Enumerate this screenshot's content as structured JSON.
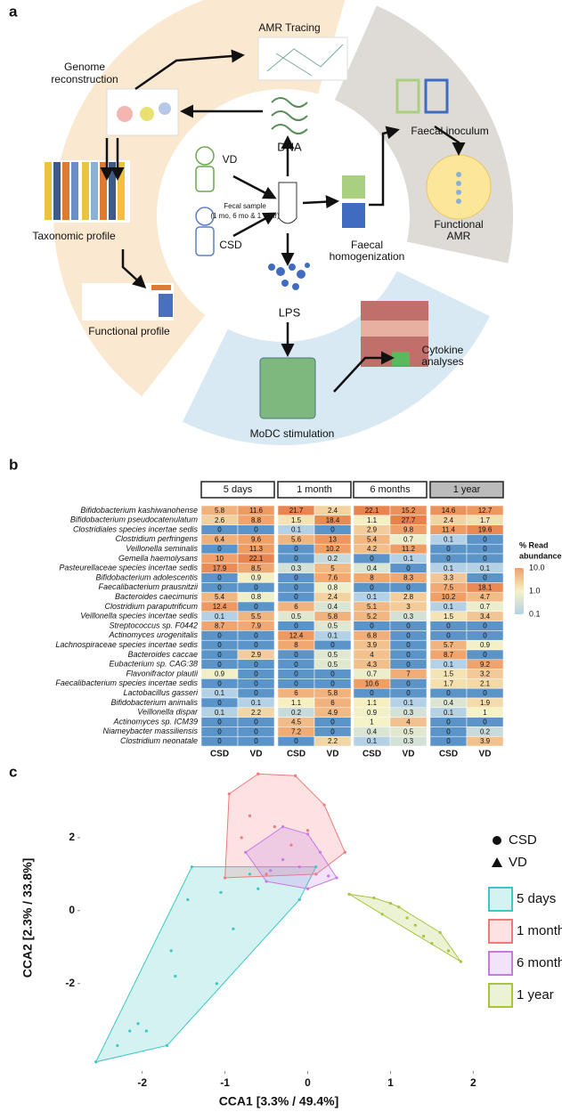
{
  "panel_a": {
    "label": "a",
    "amr_tracing": "AMR Tracing",
    "genome_reconstruction": [
      "Genome",
      "reconstruction"
    ],
    "dna": "DNA",
    "faecal_inoculum": "Faecal inoculum",
    "vd": "VD",
    "fecal_sample": [
      "Fecal sample",
      "(1 mo, 6 mo & 1 year)"
    ],
    "functional_amr": [
      "Functional",
      "AMR"
    ],
    "taxonomic_profile": "Taxonomic profile",
    "csd": "CSD",
    "faecal_homogenization": [
      "Faecal",
      "homogenization"
    ],
    "lps": "LPS",
    "functional_profile": "Functional profile",
    "cytokine_analyses": [
      "Cytokine",
      "analyses"
    ],
    "modc_stimulation": "MoDC stimulation"
  },
  "panel_b": {
    "label": "b",
    "groups": [
      "5 days",
      "1 month",
      "6 months",
      "1 year"
    ],
    "columns": [
      "CSD",
      "VD"
    ],
    "species": [
      "Bifidobacterium kashiwanohense",
      "Bifidobacterium pseudocatenulatum",
      "Clostridiales species incertae sedis",
      "Clostridium perfringens",
      "Veillonella seminalis",
      "Gemella haemolysans",
      "Pasteurellaceae species incertae sedis",
      "Bifidobacterium adolescentis",
      "Faecalibacterium prausnitzii",
      "Bacteroides caecimuris",
      "Clostridium paraputrificum",
      "Veillonella species incertae sedis",
      "Streptococcus sp. F0442",
      "Actinomyces urogenitalis",
      "Lachnospiraceae species incertae sedis",
      "Bacteroides caccae",
      "Eubacterium sp. CAG:38",
      "Flavonifractor plautii",
      "Faecalibacterium species incertae sedis",
      "Lactobacillus gasseri",
      "Bifidobacterium animalis",
      "Veillonella dispar",
      "Actinomyces sp. ICM39",
      "Niameybacter massiliensis",
      "Clostridium neonatale"
    ],
    "values": [
      [
        5.8,
        11.6,
        21.7,
        2.4,
        22.1,
        15.2,
        14.6,
        12.7
      ],
      [
        2.6,
        8.8,
        1.5,
        18.4,
        1.1,
        27.7,
        2.4,
        1.7
      ],
      [
        0,
        0,
        0.1,
        0,
        2.9,
        9.8,
        11.4,
        19.6
      ],
      [
        6.4,
        9.6,
        5.6,
        13,
        5.4,
        0.7,
        0.1,
        0
      ],
      [
        0,
        11.3,
        0,
        10.2,
        4.2,
        11.2,
        0,
        0
      ],
      [
        10,
        22.1,
        0,
        0.2,
        0,
        0.1,
        0,
        0
      ],
      [
        17.9,
        8.5,
        0.3,
        5,
        0.4,
        0,
        0.1,
        0.1
      ],
      [
        0,
        0.9,
        0,
        7.6,
        8,
        8.3,
        3.3,
        0
      ],
      [
        0,
        0,
        0,
        0.8,
        0,
        0,
        7.5,
        18.1
      ],
      [
        5.4,
        0.8,
        0,
        2.4,
        0.1,
        2.8,
        10.2,
        4.7
      ],
      [
        12.4,
        0,
        6,
        0.4,
        5.1,
        3,
        0.1,
        0.7
      ],
      [
        0.1,
        5.5,
        0.5,
        5.8,
        5.2,
        0.3,
        1.5,
        3.4
      ],
      [
        8.7,
        7.9,
        0,
        0.5,
        0,
        0,
        0,
        0
      ],
      [
        0,
        0,
        12.4,
        0.1,
        6.8,
        0,
        0,
        0
      ],
      [
        0,
        0,
        8,
        0,
        3.9,
        0,
        5.7,
        0.9
      ],
      [
        0,
        2.9,
        0,
        0.5,
        4,
        0,
        8.7,
        0
      ],
      [
        0,
        0,
        0,
        0.5,
        4.3,
        0,
        0.1,
        9.2
      ],
      [
        0.9,
        0,
        0,
        0,
        0.7,
        7,
        1.5,
        3.2
      ],
      [
        0,
        0,
        0,
        0,
        10.6,
        0,
        1.7,
        2.1
      ],
      [
        0.1,
        0,
        6,
        5.8,
        0,
        0,
        0,
        0
      ],
      [
        0,
        0.1,
        1.1,
        6,
        1.1,
        0.1,
        0.4,
        1.9
      ],
      [
        0.1,
        2.2,
        0.2,
        4.9,
        0.9,
        0.3,
        0.1,
        1
      ],
      [
        0,
        0,
        4.5,
        0,
        1,
        4,
        0,
        0
      ],
      [
        0,
        0,
        7.2,
        0,
        0.4,
        0.5,
        0,
        0.2
      ],
      [
        0,
        0,
        0,
        2.2,
        0.1,
        0.3,
        0,
        3.9
      ]
    ],
    "legend_title": [
      "% Read",
      "abundance"
    ],
    "legend_ticks": [
      {
        "value": 10,
        "label": "10.0"
      },
      {
        "value": 1,
        "label": "1.0"
      },
      0.1
    ],
    "log_scale": true
  },
  "chart_data": {
    "type": "scatter",
    "label": "c",
    "xlabel": "CCA1 [3.3% / 49.4%]",
    "ylabel": "CCA2 [2.3% / 33.8%]",
    "xlim": [
      -2.75,
      2.05
    ],
    "ylim": [
      -4.4,
      4.0
    ],
    "xticks": [
      -2,
      -1,
      0,
      1,
      2
    ],
    "yticks": [
      -2,
      0,
      2
    ],
    "shape_legend": [
      {
        "name": "CSD",
        "marker": "circle"
      },
      {
        "name": "VD",
        "marker": "triangle"
      }
    ],
    "series": [
      {
        "name": "5 days",
        "color": "#3cc6c6",
        "x": [
          -2.56,
          -2.3,
          -2.15,
          -2.05,
          -1.95,
          -1.7,
          -1.6,
          -1.65,
          -1.45,
          -1.4,
          -1.05,
          -0.7,
          -0.6,
          -0.1,
          0.1,
          -1.1,
          -0.9
        ],
        "y": [
          -4.15,
          -3.7,
          -3.3,
          -3.1,
          -3.3,
          -3.7,
          -1.8,
          -1.1,
          0.3,
          1.2,
          0.5,
          1.0,
          0.6,
          0.3,
          1.2,
          -2.0,
          -0.5
        ]
      },
      {
        "name": "1 month",
        "color": "#f07a7a",
        "x": [
          -0.95,
          -0.6,
          -0.15,
          0.2,
          0.45,
          0.1,
          -0.5,
          -1.0,
          -0.8,
          -0.4,
          -0.2,
          -0.7,
          0.0
        ],
        "y": [
          3.2,
          3.75,
          3.7,
          2.9,
          1.6,
          1.0,
          1.0,
          0.9,
          2.0,
          2.3,
          1.8,
          2.6,
          2.2
        ]
      },
      {
        "name": "6 month",
        "color": "#c67ae6",
        "x": [
          -0.75,
          -0.3,
          0.0,
          0.35,
          0.0,
          -0.5,
          -0.3,
          -0.1,
          0.15,
          -0.45,
          0.25
        ],
        "y": [
          1.6,
          2.3,
          2.1,
          0.9,
          0.6,
          0.8,
          1.4,
          1.2,
          1.6,
          1.1,
          0.95
        ]
      },
      {
        "name": "1 year",
        "color": "#a8c43c",
        "x": [
          0.5,
          0.8,
          1.1,
          1.3,
          1.5,
          1.7,
          1.85,
          1.6,
          1.2,
          0.9,
          1.4,
          1.0
        ],
        "y": [
          0.45,
          0.35,
          0.1,
          -0.4,
          -0.9,
          -1.1,
          -1.4,
          -0.6,
          -0.2,
          -0.1,
          -0.7,
          0.2
        ]
      }
    ]
  }
}
